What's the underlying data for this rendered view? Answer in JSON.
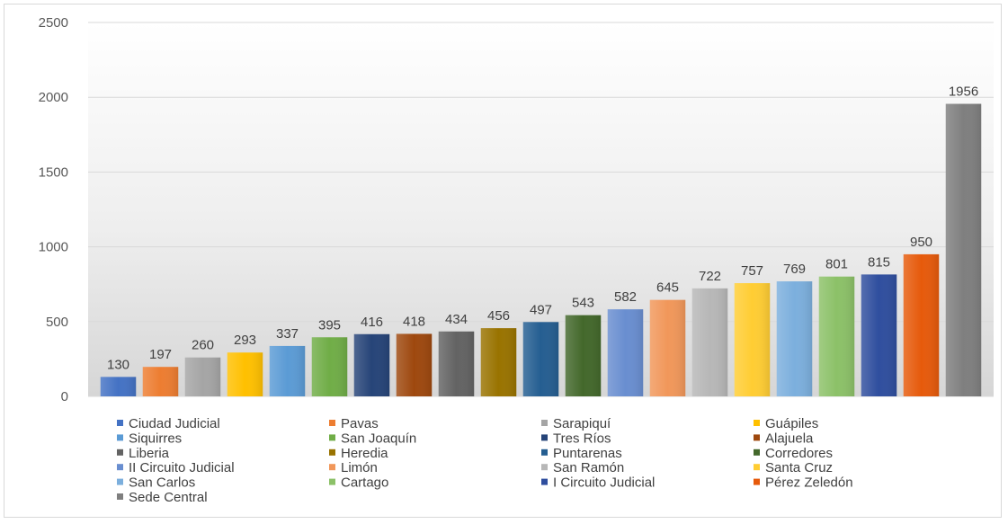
{
  "chart_data": {
    "type": "bar",
    "title": "",
    "xlabel": "",
    "ylabel": "",
    "ylim": [
      0,
      2500
    ],
    "yticks": [
      0,
      500,
      1000,
      1500,
      2000,
      2500
    ],
    "grid": true,
    "legend_position": "bottom",
    "background": "gradient-gray",
    "categories": [
      "Ciudad Judicial",
      "Pavas",
      "Sarapiquí",
      "Guápiles",
      "Siquirres",
      "San Joaquín",
      "Tres Ríos",
      "Alajuela",
      "Liberia",
      "Heredia",
      "Puntarenas",
      "Corredores",
      "II Circuito Judicial",
      "Limón",
      "San Ramón",
      "Santa Cruz",
      "San Carlos",
      "Cartago",
      "I Circuito Judicial",
      "Pérez Zeledón",
      "Sede Central"
    ],
    "values": [
      130,
      197,
      260,
      293,
      337,
      395,
      416,
      418,
      434,
      456,
      497,
      543,
      582,
      645,
      722,
      757,
      769,
      801,
      815,
      950,
      1956
    ],
    "colors": [
      "#4472C4",
      "#ED7D31",
      "#A5A5A5",
      "#FFC000",
      "#5B9BD5",
      "#70AD47",
      "#264478",
      "#9E480E",
      "#636363",
      "#997300",
      "#255E91",
      "#43682B",
      "#698ED0",
      "#F1975A",
      "#B7B7B7",
      "#FFCD33",
      "#7CAFDD",
      "#8CC168",
      "#2F4E9E",
      "#E65A0B",
      "#7F7F7F"
    ]
  }
}
